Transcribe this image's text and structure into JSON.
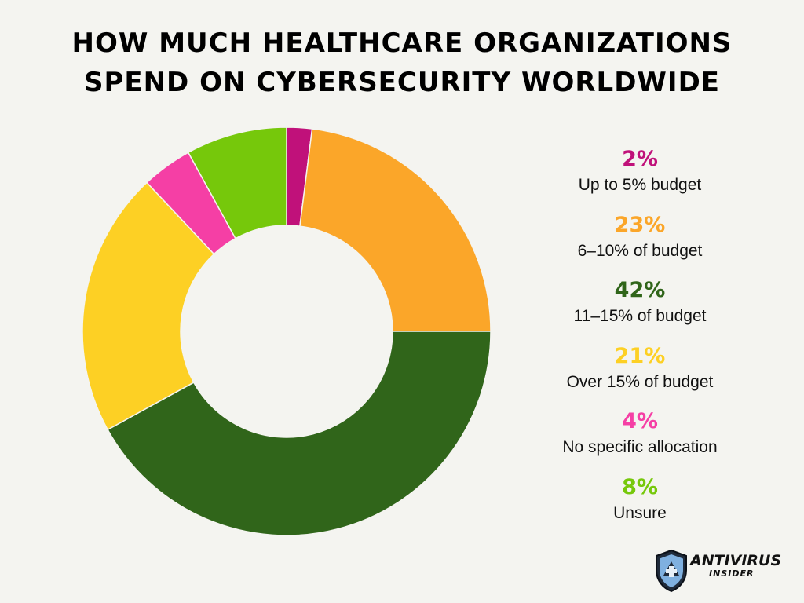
{
  "title_lines": [
    "HOW MUCH HEALTHCARE ORGANIZATIONS",
    "SPEND ON CYBERSECURITY WORLDWIDE"
  ],
  "chart_data": {
    "type": "pie",
    "variant": "donut",
    "title": "HOW MUCH HEALTHCARE ORGANIZATIONS SPEND ON CYBERSECURITY WORLDWIDE",
    "categories": [
      "Up to 5% budget",
      "6–10% of budget",
      "11–15% of budget",
      "Over 15% of budget",
      "No specific allocation",
      "Unsure"
    ],
    "values": [
      2,
      23,
      42,
      21,
      4,
      8
    ],
    "value_labels": [
      "2%",
      "23%",
      "42%",
      "21%",
      "4%",
      "8%"
    ],
    "colors": [
      "#c0117a",
      "#fba629",
      "#30651a",
      "#fdd024",
      "#f53fa5",
      "#76c80b"
    ],
    "legend_position": "right"
  },
  "logo": {
    "line1": "ANTIVIRUS",
    "line2": "INSIDER"
  }
}
